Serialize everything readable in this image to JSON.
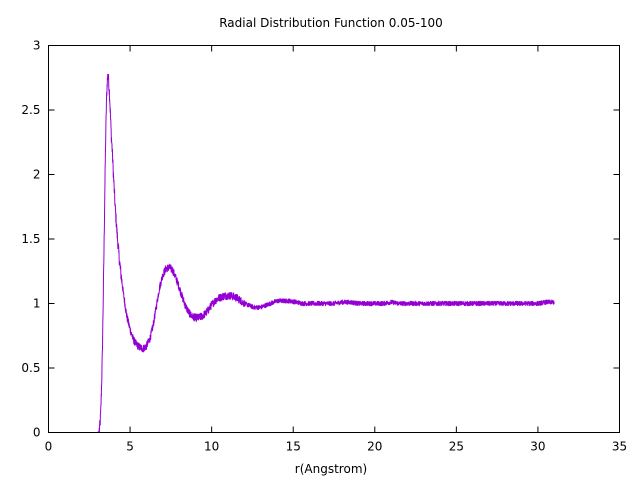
{
  "chart_data": {
    "type": "line",
    "title": "Radial Distribution Function 0.05-100",
    "xlabel": "r(Angstrom)",
    "ylabel": "",
    "xlim": [
      0,
      35
    ],
    "ylim": [
      0,
      3
    ],
    "xticks": [
      "0",
      "5",
      "10",
      "15",
      "20",
      "25",
      "30",
      "35"
    ],
    "yticks": [
      "0",
      "0.5",
      "1",
      "1.5",
      "2",
      "2.5",
      "3"
    ],
    "grid": false,
    "legend": "none",
    "series": [
      {
        "color": "#9400d3",
        "x": [
          0.0,
          1.0,
          2.0,
          2.8,
          3.0,
          3.1,
          3.15,
          3.2,
          3.25,
          3.3,
          3.35,
          3.4,
          3.45,
          3.5,
          3.55,
          3.6,
          3.65,
          3.7,
          3.75,
          3.8,
          3.85,
          3.9,
          4.0,
          4.1,
          4.2,
          4.3,
          4.4,
          4.6,
          4.8,
          5.0,
          5.2,
          5.4,
          5.6,
          5.8,
          6.0,
          6.2,
          6.4,
          6.6,
          6.8,
          7.0,
          7.2,
          7.4,
          7.6,
          7.8,
          8.0,
          8.2,
          8.4,
          8.6,
          8.8,
          9.0,
          9.2,
          9.4,
          9.6,
          9.8,
          10.0,
          10.2,
          10.4,
          10.6,
          10.8,
          11.0,
          11.2,
          11.4,
          11.6,
          11.8,
          12.0,
          12.2,
          12.4,
          12.6,
          12.8,
          13.0,
          13.2,
          13.4,
          13.6,
          13.8,
          14.0,
          14.4,
          14.8,
          15.2,
          15.6,
          16.0,
          16.5,
          17.0,
          17.5,
          18.0,
          18.5,
          19.0,
          19.5,
          20.0,
          20.5,
          21.0,
          21.5,
          22.0,
          22.5,
          23.0,
          23.5,
          24.0,
          24.5,
          25.0,
          25.5,
          26.0,
          26.5,
          27.0,
          27.5,
          28.0,
          28.5,
          29.0,
          29.5,
          30.0,
          30.5,
          31.0
        ],
        "y": [
          0.0,
          0.0,
          0.0,
          0.0,
          0.0,
          0.01,
          0.05,
          0.15,
          0.35,
          0.6,
          1.0,
          1.4,
          1.85,
          2.25,
          2.55,
          2.72,
          2.78,
          2.7,
          2.6,
          2.45,
          2.3,
          2.2,
          1.95,
          1.72,
          1.55,
          1.4,
          1.27,
          1.07,
          0.9,
          0.8,
          0.72,
          0.68,
          0.66,
          0.65,
          0.67,
          0.72,
          0.82,
          0.97,
          1.12,
          1.22,
          1.27,
          1.28,
          1.26,
          1.2,
          1.13,
          1.05,
          0.98,
          0.93,
          0.9,
          0.89,
          0.89,
          0.9,
          0.92,
          0.95,
          0.99,
          1.02,
          1.04,
          1.05,
          1.06,
          1.06,
          1.06,
          1.05,
          1.04,
          1.02,
          1.0,
          0.99,
          0.98,
          0.97,
          0.97,
          0.97,
          0.98,
          0.99,
          1.0,
          1.01,
          1.02,
          1.02,
          1.02,
          1.01,
          1.0,
          1.0,
          1.0,
          1.0,
          1.0,
          1.01,
          1.01,
          1.0,
          1.0,
          1.0,
          1.0,
          1.01,
          1.0,
          1.0,
          1.0,
          1.0,
          1.0,
          1.0,
          1.0,
          1.0,
          1.0,
          1.0,
          1.0,
          1.0,
          1.0,
          1.0,
          1.0,
          1.0,
          1.0,
          1.0,
          1.01,
          1.01
        ]
      }
    ]
  }
}
